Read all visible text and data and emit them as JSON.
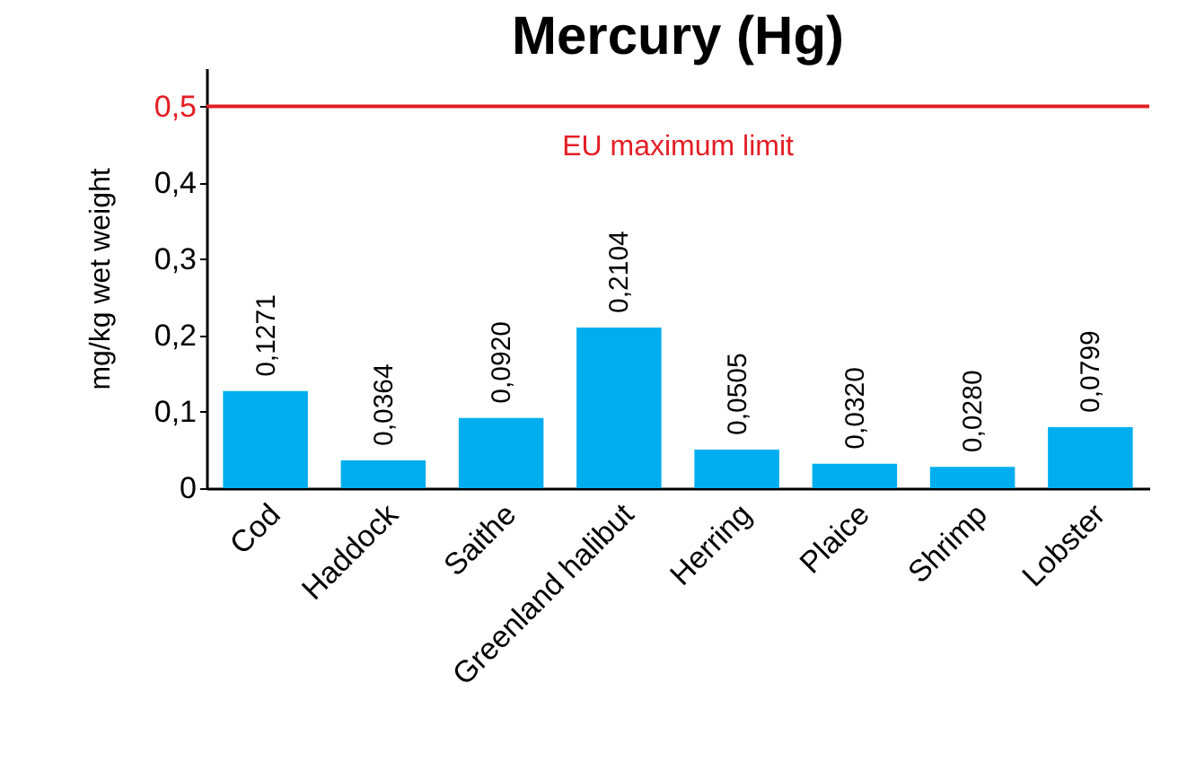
{
  "chart_data": {
    "type": "bar",
    "title": "Mercury (Hg)",
    "ylabel": "mg/kg   wet weight",
    "categories": [
      "Cod",
      "Haddock",
      "Saithe",
      "Greenland halibut",
      "Herring",
      "Plaice",
      "Shrimp",
      "Lobster"
    ],
    "values": [
      0.1271,
      0.0364,
      0.092,
      0.2104,
      0.0505,
      0.032,
      0.028,
      0.0799
    ],
    "value_labels": [
      "0,1271",
      "0,0364",
      "0,0920",
      "0,2104",
      "0,0505",
      "0,0320",
      "0,0280",
      "0,0799"
    ],
    "color": "#00aeef",
    "ylim": [
      0,
      0.55
    ],
    "yticks": [
      0,
      {
        "value": 0.1,
        "label": "0,1"
      },
      {
        "value": 0.2,
        "label": "0,2"
      },
      {
        "value": 0.3,
        "label": "0,3"
      },
      {
        "value": 0.4,
        "label": "0,4"
      },
      {
        "value": 0.5,
        "label": "0,5"
      }
    ],
    "ref_lines": [
      {
        "axis": "y",
        "value": 0.5,
        "label": "EU maximum limit",
        "color": "#e31e24"
      }
    ],
    "grid": false
  }
}
